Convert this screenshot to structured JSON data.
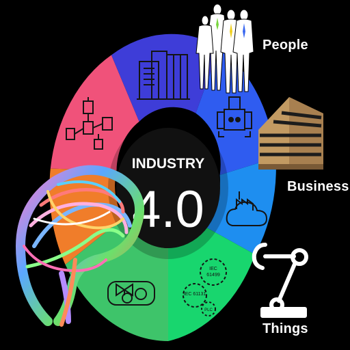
{
  "center": {
    "title": "INDUSTRY",
    "version": "4.0"
  },
  "segments": [
    {
      "id": "automation",
      "color": "#f0527a",
      "icon": "circuit-icon"
    },
    {
      "id": "devices",
      "color": "#3e3dd8",
      "icon": "server-rack-icon"
    },
    {
      "id": "robotics",
      "color": "#2f5cf0",
      "icon": "robot-vehicle-icon"
    },
    {
      "id": "cloud",
      "color": "#1e8ef0",
      "icon": "cloud-factory-icon"
    },
    {
      "id": "standards",
      "color": "#18d66e",
      "icon": "gears-icon"
    },
    {
      "id": "motor",
      "color": "#3ec46a",
      "icon": "motor-valve-icon"
    },
    {
      "id": "analytics",
      "color": "#f07d2a",
      "icon": "brain-icon"
    }
  ],
  "standards_gears": {
    "gear1": "IEC 61131",
    "gear2_line1": "IEC",
    "gear2_line2": "61499",
    "gear3": "PLC"
  },
  "labels": {
    "people": "People",
    "business": "Business",
    "things": "Things"
  },
  "colors": {
    "background": "#000000",
    "hub": "#111111",
    "text": "#ffffff",
    "building": "#c29a62"
  }
}
